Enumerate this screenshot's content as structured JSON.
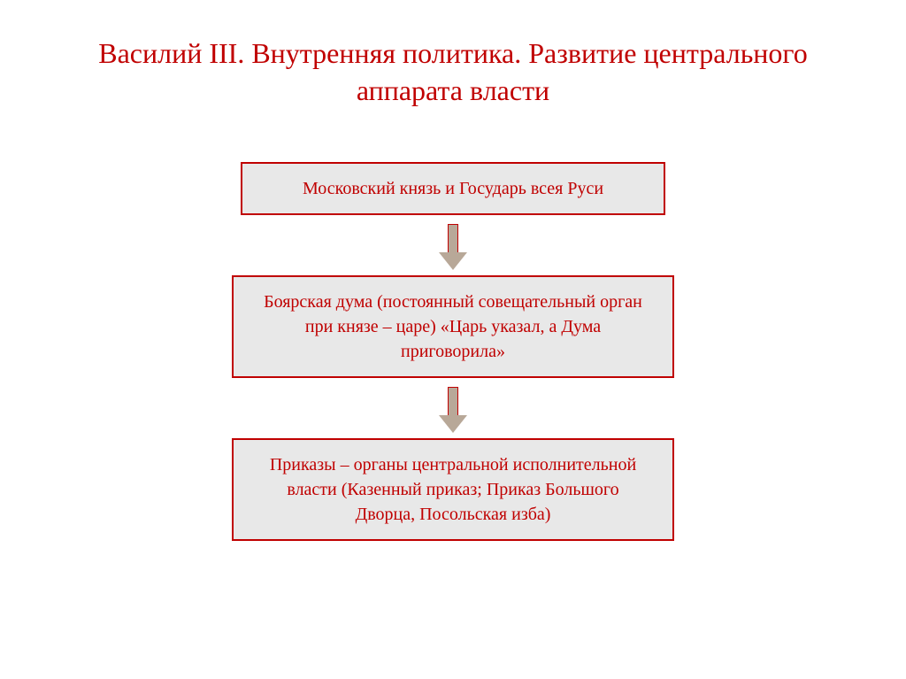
{
  "title": "Василий III. Внутренняя политика. Развитие центрального аппарата власти",
  "title_color": "#c00000",
  "title_fontsize": 32,
  "background_color": "#ffffff",
  "flowchart": {
    "type": "flowchart",
    "direction": "vertical",
    "box_background": "#e8e8e8",
    "box_border_color": "#c00000",
    "box_text_color": "#c00000",
    "box_border_width": 2,
    "box_fontsize": 20,
    "arrow_fill": "#b8a898",
    "arrow_border": "#c00000",
    "nodes": [
      {
        "id": "node1",
        "text": "Московский князь и Государь всея Руси"
      },
      {
        "id": "node2",
        "text": "Боярская дума (постоянный совещательный орган при князе – царе) «Царь указал, а Дума приговорила»"
      },
      {
        "id": "node3",
        "text": "Приказы – органы центральной исполнительной власти (Казенный приказ; Приказ Большого Дворца, Посольская изба)"
      }
    ],
    "edges": [
      {
        "from": "node1",
        "to": "node2"
      },
      {
        "from": "node2",
        "to": "node3"
      }
    ]
  }
}
